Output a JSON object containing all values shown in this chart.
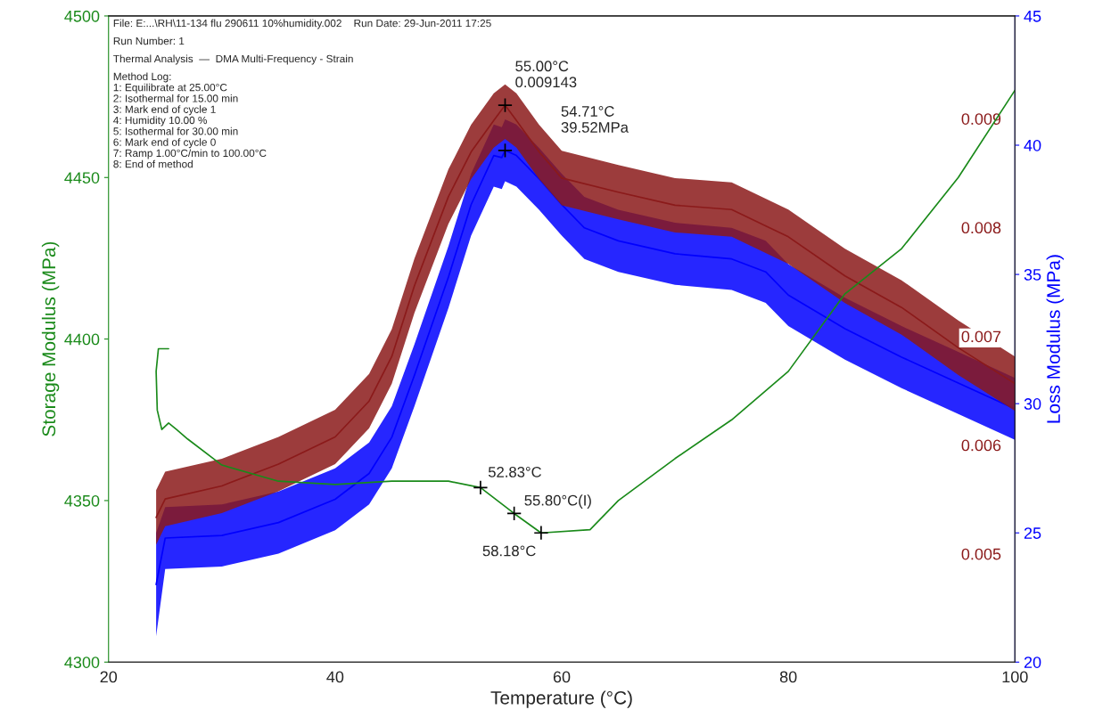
{
  "chart_data": {
    "type": "line",
    "xlabel": "Temperature (°C)",
    "ylabel": "Storage Modulus (MPa)",
    "y2label": "Loss Modulus (MPa)",
    "xlim": [
      20,
      100
    ],
    "xticks": [
      20,
      40,
      60,
      80,
      100
    ],
    "ylim": [
      4300,
      4500
    ],
    "yticks": [
      4300,
      4350,
      4400,
      4450,
      4500
    ],
    "y2lim": [
      20,
      45
    ],
    "y2ticks": [
      20,
      25,
      30,
      35,
      40,
      45
    ],
    "y3lim": [
      0.00402,
      0.00996
    ],
    "y3ticks": [
      0.005,
      0.006,
      0.007,
      0.008,
      0.009
    ],
    "grid": false,
    "series": [
      {
        "color": "#1a8a1a",
        "x": [
          25.3,
          24.4,
          24.2,
          24.3,
          24.7,
          25.3,
          26,
          27,
          30,
          35,
          40,
          45,
          50,
          52.83,
          55.8,
          58.18,
          62.5,
          65,
          70,
          75,
          80,
          85,
          90,
          95,
          100
        ],
        "values": [
          4397,
          4397,
          4390,
          4378,
          4372,
          4374,
          4372,
          4369,
          4361,
          4356,
          4355,
          4356,
          4356,
          4354,
          4346,
          4340,
          4341,
          4350,
          4363,
          4375,
          4390,
          4414,
          4428,
          4450,
          4477
        ]
      },
      {
        "color": "#0000ff",
        "axis": "y2",
        "x": [
          24.2,
          25,
          30,
          35,
          40,
          43,
          45,
          47,
          50,
          52,
          54,
          54.71,
          55,
          56,
          58,
          60,
          62,
          65,
          70,
          75,
          78,
          80,
          85,
          90,
          95,
          100
        ],
        "values": [
          23,
          24.8,
          24.9,
          25.4,
          26.3,
          27.3,
          28.7,
          31.1,
          34.9,
          37.7,
          39.6,
          39.52,
          39.8,
          39.6,
          38.7,
          37.7,
          36.8,
          36.3,
          35.8,
          35.6,
          35.1,
          34.2,
          32.9,
          31.8,
          30.8,
          29.8
        ],
        "lower": [
          21,
          23.6,
          23.7,
          24.2,
          25.1,
          26.1,
          27.5,
          29.9,
          33.7,
          36.5,
          38.4,
          38.3,
          38.6,
          38.4,
          37.5,
          36.5,
          35.6,
          35.1,
          34.6,
          34.4,
          33.9,
          33,
          31.7,
          30.6,
          29.6,
          28.6
        ],
        "upper": [
          25,
          26,
          26.1,
          26.6,
          27.5,
          28.5,
          29.9,
          32.3,
          36.1,
          38.9,
          40.8,
          40.7,
          41,
          40.8,
          39.9,
          38.9,
          38,
          37.5,
          37,
          36.8,
          36.3,
          35.4,
          34.1,
          33,
          32,
          31
        ]
      },
      {
        "color": "#8b1a1a",
        "axis": "y3",
        "x": [
          24.2,
          25,
          30,
          35,
          40,
          43,
          45,
          47,
          50,
          52,
          54,
          55,
          56,
          58,
          60,
          65,
          70,
          75,
          80,
          85,
          90,
          95,
          100
        ],
        "values": [
          0.00535,
          0.00552,
          0.00564,
          0.00584,
          0.00609,
          0.00642,
          0.00683,
          0.00748,
          0.0083,
          0.00871,
          0.009,
          0.00914,
          0.009,
          0.00871,
          0.00847,
          0.00834,
          0.00822,
          0.00818,
          0.00793,
          0.00757,
          0.00728,
          0.00691,
          0.00658
        ],
        "lower": [
          0.0051,
          0.00527,
          0.00539,
          0.00559,
          0.00584,
          0.00617,
          0.00658,
          0.00723,
          0.00805,
          0.00846,
          0.00875,
          0.00883,
          0.00875,
          0.00846,
          0.00822,
          0.00809,
          0.00797,
          0.00793,
          0.00768,
          0.00732,
          0.00703,
          0.00666,
          0.00633
        ],
        "upper": [
          0.0056,
          0.00577,
          0.00589,
          0.00609,
          0.00634,
          0.00667,
          0.00708,
          0.00773,
          0.00855,
          0.00896,
          0.00925,
          0.00933,
          0.00925,
          0.00896,
          0.00872,
          0.00859,
          0.00847,
          0.00843,
          0.00818,
          0.00782,
          0.00753,
          0.00716,
          0.00683
        ]
      }
    ],
    "annotations": [
      "File: E:...\\RH\\11-134 flu 290611 10%humidity.002    Run Date: 29-Jun-2011 17:25",
      "Run Number: 1",
      "Thermal Analysis  —  DMA Multi-Frequency - Strain",
      "Method Log:\n1: Equilibrate at 25.00°C\n2: Isothermal for 15.00 min\n3: Mark end of cycle 1\n4: Humidity 10.00 %\n5: Isothermal for 30.00 min\n6: Mark end of cycle 0\n7: Ramp 1.00°C/min to 100.00°C\n8: End of method",
      "55.00°C\n0.009143",
      "54.71°C\n39.52MPa",
      {
        "text": "52.83°C",
        "x": 52.83,
        "y": 4354
      },
      {
        "text": "55.80°C(I)",
        "x": 55.8,
        "y": 4346
      },
      {
        "text": "58.18°C",
        "x": 58.18,
        "y": 4340
      }
    ]
  }
}
